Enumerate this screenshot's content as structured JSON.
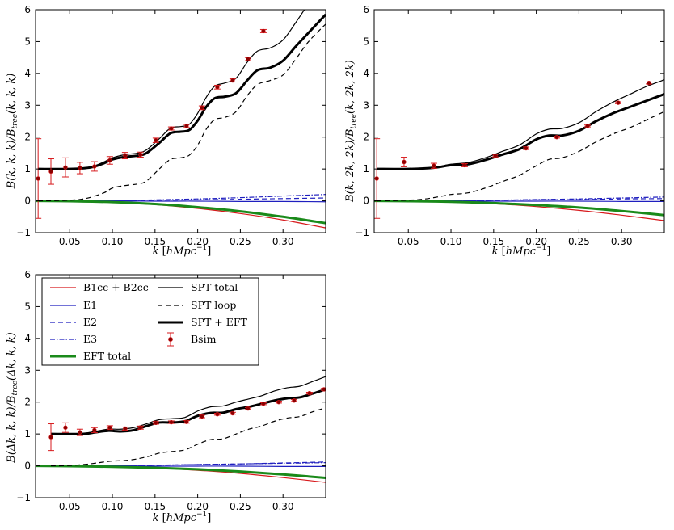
{
  "chart_data": [
    {
      "type": "line",
      "panel": "top-left",
      "xlabel": "k [hMpc^-1]",
      "ylabel": "B(k,k,k)/B_tree(k,k,k)",
      "xlim": [
        0.01,
        0.35
      ],
      "ylim": [
        -1,
        6
      ],
      "xticks": [
        "0.05",
        "0.10",
        "0.15",
        "0.20",
        "0.25",
        "0.30"
      ],
      "yticks": [
        "-1",
        "0",
        "1",
        "2",
        "3",
        "4",
        "5",
        "6"
      ],
      "points": {
        "x": [
          0.013,
          0.028,
          0.045,
          0.062,
          0.079,
          0.097,
          0.115,
          0.133,
          0.151,
          0.169,
          0.187,
          0.205,
          0.223,
          0.241,
          0.259,
          0.277
        ],
        "y": [
          0.7,
          0.92,
          1.05,
          1.03,
          1.08,
          1.27,
          1.42,
          1.45,
          1.9,
          2.27,
          2.35,
          2.92,
          3.57,
          3.78,
          4.45,
          5.33
        ],
        "err": [
          1.25,
          0.4,
          0.3,
          0.18,
          0.15,
          0.12,
          0.1,
          0.08,
          0.07,
          0.05,
          0.05,
          0.06,
          0.06,
          0.05,
          0.05,
          0.05
        ]
      },
      "curves": {
        "spt_total": {
          "x": [
            0.013,
            0.05,
            0.075,
            0.09,
            0.1,
            0.115,
            0.13,
            0.14,
            0.155,
            0.168,
            0.18,
            0.19,
            0.2,
            0.21,
            0.22,
            0.232,
            0.245,
            0.258,
            0.27,
            0.285,
            0.3,
            0.315,
            0.33,
            0.35
          ],
          "y": [
            1.0,
            1.0,
            1.07,
            1.22,
            1.35,
            1.45,
            1.5,
            1.6,
            1.95,
            2.28,
            2.33,
            2.4,
            2.75,
            3.25,
            3.6,
            3.7,
            3.85,
            4.35,
            4.7,
            4.8,
            5.05,
            5.6,
            6.2,
            7.0
          ]
        },
        "spt_eft": {
          "x": [
            0.013,
            0.05,
            0.075,
            0.09,
            0.1,
            0.115,
            0.13,
            0.14,
            0.155,
            0.168,
            0.18,
            0.19,
            0.2,
            0.21,
            0.22,
            0.232,
            0.245,
            0.258,
            0.27,
            0.285,
            0.3,
            0.315,
            0.33,
            0.35
          ],
          "y": [
            1.0,
            1.0,
            1.05,
            1.18,
            1.3,
            1.38,
            1.42,
            1.5,
            1.82,
            2.12,
            2.17,
            2.22,
            2.52,
            2.95,
            3.22,
            3.27,
            3.38,
            3.78,
            4.1,
            4.18,
            4.4,
            4.85,
            5.28,
            5.85
          ]
        },
        "spt_loop": {
          "x": [
            0.013,
            0.05,
            0.07,
            0.09,
            0.1,
            0.115,
            0.13,
            0.14,
            0.155,
            0.168,
            0.18,
            0.19,
            0.2,
            0.21,
            0.22,
            0.232,
            0.245,
            0.258,
            0.27,
            0.285,
            0.3,
            0.315,
            0.33,
            0.35
          ],
          "y": [
            0.0,
            0.02,
            0.08,
            0.25,
            0.4,
            0.48,
            0.53,
            0.62,
            1.0,
            1.3,
            1.35,
            1.43,
            1.75,
            2.25,
            2.55,
            2.62,
            2.8,
            3.3,
            3.65,
            3.78,
            3.95,
            4.45,
            5.0,
            5.55
          ]
        },
        "b_cc": {
          "x": [
            0.01,
            0.05,
            0.1,
            0.15,
            0.2,
            0.25,
            0.3,
            0.35
          ],
          "y": [
            0,
            -0.01,
            -0.05,
            -0.12,
            -0.24,
            -0.4,
            -0.6,
            -0.85
          ]
        },
        "e1": {
          "x": [
            0.01,
            0.05,
            0.1,
            0.15,
            0.2,
            0.25,
            0.3,
            0.35
          ],
          "y": [
            0,
            0,
            0,
            -0.01,
            -0.01,
            -0.02,
            -0.02,
            -0.03
          ]
        },
        "e2": {
          "x": [
            0.01,
            0.05,
            0.1,
            0.15,
            0.2,
            0.25,
            0.3,
            0.35
          ],
          "y": [
            0,
            0,
            0.01,
            0.02,
            0.03,
            0.05,
            0.07,
            0.09
          ]
        },
        "e3": {
          "x": [
            0.01,
            0.05,
            0.1,
            0.15,
            0.2,
            0.25,
            0.3,
            0.35
          ],
          "y": [
            0,
            0,
            0.01,
            0.03,
            0.06,
            0.1,
            0.15,
            0.2
          ]
        },
        "eft_total": {
          "x": [
            0.01,
            0.05,
            0.1,
            0.15,
            0.2,
            0.25,
            0.3,
            0.35
          ],
          "y": [
            0,
            -0.01,
            -0.04,
            -0.1,
            -0.2,
            -0.33,
            -0.5,
            -0.7
          ]
        }
      }
    },
    {
      "type": "line",
      "panel": "top-right",
      "xlabel": "k [hMpc^-1]",
      "ylabel": "B(k,2k,2k)/B_tree(k,2k,2k)",
      "xlim": [
        0.01,
        0.35
      ],
      "ylim": [
        -1,
        6
      ],
      "xticks": [
        "0.05",
        "0.10",
        "0.15",
        "0.20",
        "0.25",
        "0.30"
      ],
      "yticks": [
        "-1",
        "0",
        "1",
        "2",
        "3",
        "4",
        "5",
        "6"
      ],
      "points": {
        "x": [
          0.013,
          0.045,
          0.08,
          0.116,
          0.152,
          0.188,
          0.224,
          0.26,
          0.296,
          0.332
        ],
        "y": [
          0.7,
          1.22,
          1.1,
          1.12,
          1.42,
          1.65,
          2.0,
          2.35,
          3.08,
          3.7
        ],
        "err": [
          1.25,
          0.15,
          0.08,
          0.05,
          0.04,
          0.04,
          0.03,
          0.03,
          0.03,
          0.03
        ]
      },
      "curves": {
        "spt_total": {
          "x": [
            0.013,
            0.05,
            0.08,
            0.1,
            0.12,
            0.14,
            0.16,
            0.18,
            0.2,
            0.215,
            0.23,
            0.25,
            0.27,
            0.29,
            0.31,
            0.33,
            0.35
          ],
          "y": [
            1.0,
            1.0,
            1.05,
            1.15,
            1.2,
            1.35,
            1.55,
            1.75,
            2.1,
            2.25,
            2.27,
            2.45,
            2.8,
            3.1,
            3.35,
            3.6,
            3.8
          ]
        },
        "spt_eft": {
          "x": [
            0.013,
            0.05,
            0.08,
            0.1,
            0.12,
            0.14,
            0.16,
            0.18,
            0.2,
            0.215,
            0.23,
            0.25,
            0.27,
            0.29,
            0.31,
            0.33,
            0.35
          ],
          "y": [
            1.0,
            1.0,
            1.04,
            1.12,
            1.15,
            1.28,
            1.45,
            1.62,
            1.93,
            2.05,
            2.05,
            2.2,
            2.5,
            2.75,
            2.95,
            3.15,
            3.35
          ]
        },
        "spt_loop": {
          "x": [
            0.013,
            0.05,
            0.07,
            0.09,
            0.1,
            0.12,
            0.14,
            0.16,
            0.18,
            0.2,
            0.215,
            0.23,
            0.25,
            0.27,
            0.29,
            0.31,
            0.33,
            0.35
          ],
          "y": [
            0,
            0.02,
            0.06,
            0.15,
            0.2,
            0.25,
            0.4,
            0.6,
            0.8,
            1.1,
            1.3,
            1.35,
            1.55,
            1.85,
            2.1,
            2.3,
            2.55,
            2.8
          ]
        },
        "b_cc": {
          "x": [
            0.01,
            0.05,
            0.1,
            0.15,
            0.2,
            0.25,
            0.3,
            0.35
          ],
          "y": [
            0,
            -0.01,
            -0.04,
            -0.09,
            -0.18,
            -0.3,
            -0.45,
            -0.62
          ]
        },
        "e1": {
          "x": [
            0.01,
            0.05,
            0.1,
            0.15,
            0.2,
            0.25,
            0.3,
            0.35
          ],
          "y": [
            0,
            0,
            0,
            -0.01,
            -0.01,
            -0.01,
            -0.02,
            -0.02
          ]
        },
        "e2": {
          "x": [
            0.01,
            0.05,
            0.1,
            0.15,
            0.2,
            0.25,
            0.3,
            0.35
          ],
          "y": [
            0,
            0,
            0.01,
            0.02,
            0.03,
            0.04,
            0.06,
            0.07
          ]
        },
        "e3": {
          "x": [
            0.01,
            0.05,
            0.1,
            0.15,
            0.2,
            0.25,
            0.3,
            0.35
          ],
          "y": [
            0,
            0,
            0.01,
            0.02,
            0.04,
            0.06,
            0.09,
            0.12
          ]
        },
        "eft_total": {
          "x": [
            0.01,
            0.05,
            0.1,
            0.15,
            0.2,
            0.25,
            0.3,
            0.35
          ],
          "y": [
            0,
            -0.01,
            -0.03,
            -0.07,
            -0.13,
            -0.21,
            -0.32,
            -0.45
          ]
        }
      }
    },
    {
      "type": "line",
      "panel": "bottom-left",
      "xlabel": "k [hMpc^-1]",
      "ylabel": "B(Δk,k,k)/B_tree(Δk,k,k)",
      "xlim": [
        0.01,
        0.35
      ],
      "ylim": [
        -1,
        6
      ],
      "xticks": [
        "0.05",
        "0.10",
        "0.15",
        "0.20",
        "0.25",
        "0.30"
      ],
      "yticks": [
        "-1",
        "0",
        "1",
        "2",
        "3",
        "4",
        "5",
        "6"
      ],
      "points": {
        "x": [
          0.028,
          0.045,
          0.062,
          0.079,
          0.097,
          0.115,
          0.133,
          0.151,
          0.169,
          0.187,
          0.205,
          0.223,
          0.241,
          0.259,
          0.277,
          0.295,
          0.313,
          0.331,
          0.348
        ],
        "y": [
          0.9,
          1.2,
          1.05,
          1.12,
          1.2,
          1.17,
          1.2,
          1.35,
          1.37,
          1.38,
          1.55,
          1.62,
          1.65,
          1.8,
          1.95,
          2.0,
          2.05,
          2.28,
          2.4
        ],
        "err": [
          0.42,
          0.15,
          0.1,
          0.08,
          0.06,
          0.05,
          0.05,
          0.04,
          0.04,
          0.04,
          0.04,
          0.03,
          0.03,
          0.03,
          0.03,
          0.03,
          0.03,
          0.03,
          0.03
        ]
      },
      "curves": {
        "spt_total": {
          "x": [
            0.028,
            0.065,
            0.08,
            0.095,
            0.11,
            0.125,
            0.14,
            0.155,
            0.17,
            0.185,
            0.2,
            0.215,
            0.23,
            0.245,
            0.26,
            0.275,
            0.29,
            0.305,
            0.32,
            0.335,
            0.35
          ],
          "y": [
            1.0,
            1.02,
            1.08,
            1.15,
            1.15,
            1.2,
            1.32,
            1.45,
            1.48,
            1.52,
            1.72,
            1.85,
            1.88,
            2.0,
            2.1,
            2.2,
            2.35,
            2.45,
            2.5,
            2.65,
            2.8
          ]
        },
        "spt_eft": {
          "x": [
            0.028,
            0.065,
            0.08,
            0.095,
            0.11,
            0.125,
            0.14,
            0.155,
            0.17,
            0.185,
            0.2,
            0.215,
            0.23,
            0.245,
            0.26,
            0.275,
            0.29,
            0.305,
            0.32,
            0.335,
            0.35
          ],
          "y": [
            1.0,
            1.0,
            1.05,
            1.1,
            1.08,
            1.12,
            1.25,
            1.36,
            1.36,
            1.4,
            1.57,
            1.66,
            1.67,
            1.78,
            1.85,
            1.95,
            2.05,
            2.12,
            2.15,
            2.27,
            2.4
          ]
        },
        "spt_loop": {
          "x": [
            0.028,
            0.05,
            0.07,
            0.09,
            0.1,
            0.12,
            0.14,
            0.155,
            0.17,
            0.185,
            0.2,
            0.215,
            0.23,
            0.245,
            0.26,
            0.275,
            0.29,
            0.305,
            0.32,
            0.335,
            0.35
          ],
          "y": [
            0,
            0.01,
            0.05,
            0.12,
            0.15,
            0.18,
            0.28,
            0.4,
            0.45,
            0.5,
            0.68,
            0.82,
            0.85,
            1.0,
            1.15,
            1.25,
            1.4,
            1.5,
            1.55,
            1.7,
            1.82
          ]
        },
        "b_cc": {
          "x": [
            0.01,
            0.05,
            0.1,
            0.15,
            0.2,
            0.25,
            0.3,
            0.35
          ],
          "y": [
            0,
            -0.01,
            -0.03,
            -0.07,
            -0.14,
            -0.24,
            -0.37,
            -0.52
          ]
        },
        "e1": {
          "x": [
            0.01,
            0.05,
            0.1,
            0.15,
            0.2,
            0.25,
            0.3,
            0.35
          ],
          "y": [
            0,
            0,
            0,
            -0.01,
            -0.01,
            -0.01,
            -0.02,
            -0.02
          ]
        },
        "e2": {
          "x": [
            0.01,
            0.05,
            0.1,
            0.15,
            0.2,
            0.25,
            0.3,
            0.35
          ],
          "y": [
            0,
            0,
            0.01,
            0.02,
            0.04,
            0.06,
            0.09,
            0.12
          ]
        },
        "e3": {
          "x": [
            0.01,
            0.05,
            0.1,
            0.15,
            0.2,
            0.25,
            0.3,
            0.35
          ],
          "y": [
            0,
            0,
            0.01,
            0.02,
            0.04,
            0.06,
            0.08,
            0.1
          ]
        },
        "eft_total": {
          "x": [
            0.01,
            0.05,
            0.1,
            0.15,
            0.2,
            0.25,
            0.3,
            0.35
          ],
          "y": [
            0,
            -0.01,
            -0.03,
            -0.06,
            -0.11,
            -0.18,
            -0.27,
            -0.38
          ]
        }
      }
    }
  ],
  "legend": {
    "b_cc": "B1cc + B2cc",
    "e1": "E1",
    "e2": "E2",
    "e3": "E3",
    "eft_total": "EFT total",
    "spt_total": "SPT total",
    "spt_loop": "SPT loop",
    "spt_eft": "SPT + EFT",
    "b_sim": "Bsim"
  },
  "colors": {
    "red": "#d7191c",
    "blue": "#1f1fbf",
    "green": "#1a8a1a",
    "black": "#000000",
    "marker": "#8b0000"
  }
}
